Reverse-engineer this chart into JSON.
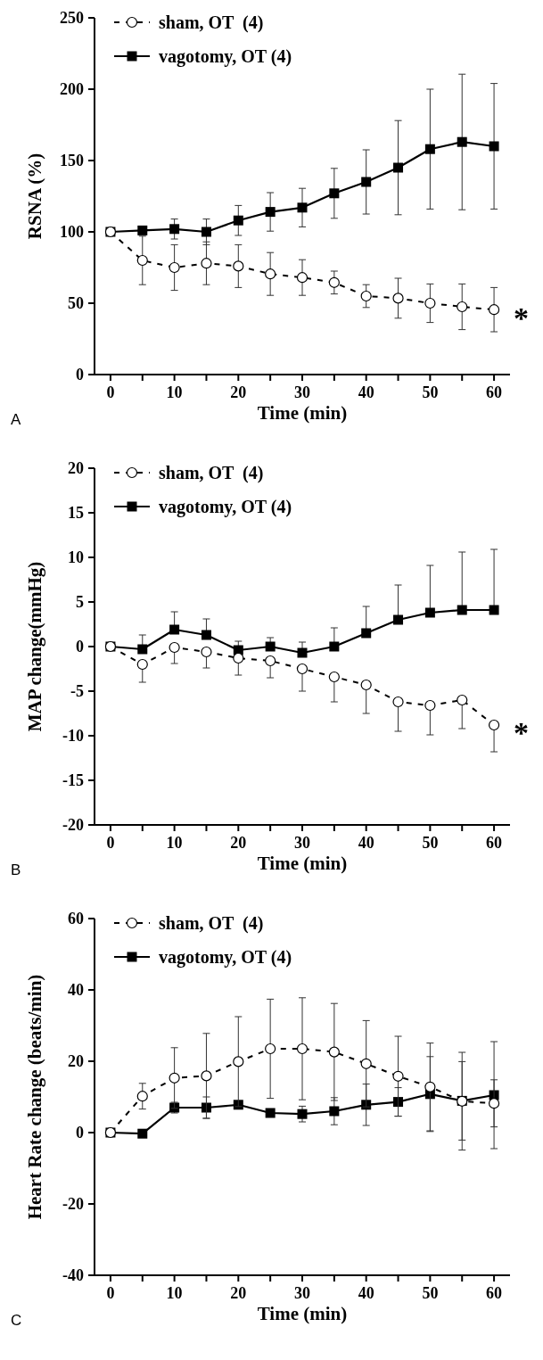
{
  "chart_data": [
    {
      "type": "line",
      "ylabel": "RSNA (%)",
      "xlabel": "Time (min)",
      "x": [
        0,
        5,
        10,
        15,
        20,
        25,
        30,
        35,
        40,
        45,
        50,
        55,
        60
      ],
      "xlim": [
        -2.5,
        62.5
      ],
      "xticks": [
        0,
        {
          "value": 5,
          "label": null
        },
        10,
        {
          "value": 15,
          "label": null
        },
        20,
        {
          "value": 25,
          "label": null
        },
        30,
        {
          "value": 35,
          "label": null
        },
        40,
        {
          "value": 45,
          "label": null
        },
        50,
        {
          "value": 55,
          "label": null
        },
        60
      ],
      "ylim": [
        0,
        250
      ],
      "yticks": [
        0,
        50,
        100,
        150,
        200,
        250
      ],
      "legend": "top left",
      "grid": false,
      "series": [
        {
          "name": "sham, OT  (4)",
          "color": "#000000",
          "marker": "circle",
          "line_style": "dashed",
          "values": [
            100,
            80,
            75,
            78,
            76,
            70.5,
            68,
            64.5,
            55,
            53.5,
            50,
            47.5,
            45.5
          ],
          "errors": [
            null,
            17,
            16,
            15,
            15,
            15,
            12.5,
            8,
            8,
            14,
            13.5,
            16,
            15.5
          ]
        },
        {
          "name": "vagotomy, OT (4)",
          "color": "#000000",
          "marker": "square",
          "line_style": "solid",
          "values": [
            100,
            101,
            102,
            100,
            108,
            114,
            117,
            127,
            135,
            145,
            158,
            163,
            160
          ],
          "errors": [
            null,
            null,
            7,
            9,
            10.5,
            13.5,
            13.5,
            17.5,
            22.5,
            33,
            42,
            47.5,
            44
          ]
        }
      ],
      "annotations": [
        "A",
        {
          "text": "*",
          "x": 60,
          "y": 45.5
        }
      ]
    },
    {
      "type": "line",
      "ylabel": "MAP change(mmHg)",
      "xlabel": "Time (min)",
      "x": [
        0,
        5,
        10,
        15,
        20,
        25,
        30,
        35,
        40,
        45,
        50,
        55,
        60
      ],
      "xlim": [
        -2.5,
        62.5
      ],
      "xticks": [
        0,
        {
          "value": 5,
          "label": null
        },
        10,
        {
          "value": 15,
          "label": null
        },
        20,
        {
          "value": 25,
          "label": null
        },
        30,
        {
          "value": 35,
          "label": null
        },
        40,
        {
          "value": 45,
          "label": null
        },
        50,
        {
          "value": 55,
          "label": null
        },
        60
      ],
      "ylim": [
        -20,
        20
      ],
      "yticks": [
        -20,
        -15,
        -10,
        -5,
        0,
        5,
        10,
        15,
        20
      ],
      "legend": "top left",
      "grid": false,
      "series": [
        {
          "name": "sham, OT  (4)",
          "color": "#000000",
          "marker": "circle",
          "line_style": "dashed",
          "values": [
            0,
            -2,
            -0.1,
            -0.6,
            -1.3,
            -1.6,
            -2.5,
            -3.4,
            -4.3,
            -6.2,
            -6.6,
            -6,
            -8.8
          ],
          "errors": [
            null,
            [
              -4,
              -2
            ],
            [
              -1.9,
              -0.1
            ],
            [
              -2.4,
              -0.6
            ],
            [
              -3.2,
              -1.3
            ],
            [
              -3.5,
              -1.6
            ],
            [
              -5,
              -2.5
            ],
            [
              -6.2,
              -3.4
            ],
            [
              -7.5,
              -4.3
            ],
            [
              -9.5,
              -6.2
            ],
            [
              -9.9,
              -6.6
            ],
            [
              -9.2,
              -6
            ],
            [
              -11.8,
              -8.8
            ]
          ]
        },
        {
          "name": "vagotomy, OT (4)",
          "color": "#000000",
          "marker": "square",
          "line_style": "solid",
          "values": [
            0,
            -0.3,
            1.9,
            1.3,
            -0.4,
            0,
            -0.7,
            0,
            1.5,
            3,
            3.8,
            4.1,
            4.1
          ],
          "errors": [
            null,
            [
              -0.3,
              1.3
            ],
            [
              1.9,
              3.9
            ],
            [
              1.3,
              3.1
            ],
            [
              -0.4,
              0.6
            ],
            [
              0,
              1
            ],
            [
              -0.7,
              0.5
            ],
            [
              0,
              2.1
            ],
            [
              1.5,
              4.5
            ],
            [
              3,
              6.9
            ],
            [
              3.8,
              9.1
            ],
            [
              4.1,
              10.6
            ],
            [
              4.1,
              10.9
            ]
          ]
        }
      ],
      "annotations": [
        "B",
        {
          "text": "*",
          "x": 60,
          "y": -8.8
        }
      ]
    },
    {
      "type": "line",
      "ylabel": "Heart Rate change (beats/min)",
      "xlabel": "Time (min)",
      "x": [
        0,
        5,
        10,
        15,
        20,
        25,
        30,
        35,
        40,
        45,
        50,
        55,
        60
      ],
      "xlim": [
        -2.5,
        62.5
      ],
      "xticks": [
        0,
        {
          "value": 5,
          "label": null
        },
        10,
        {
          "value": 15,
          "label": null
        },
        20,
        {
          "value": 25,
          "label": null
        },
        30,
        {
          "value": 35,
          "label": null
        },
        40,
        {
          "value": 45,
          "label": null
        },
        50,
        {
          "value": 55,
          "label": null
        },
        60
      ],
      "ylim": [
        -40,
        60
      ],
      "yticks": [
        -40,
        -20,
        0,
        20,
        40,
        60
      ],
      "legend": "top left",
      "grid": false,
      "series": [
        {
          "name": "sham, OT  (4)",
          "color": "#000000",
          "marker": "circle",
          "line_style": "dashed",
          "values": [
            0,
            10.2,
            15.3,
            15.9,
            19.9,
            23.5,
            23.5,
            22.6,
            19.3,
            15.8,
            12.8,
            8.8,
            8.2
          ],
          "errors": [
            null,
            3.6,
            8.5,
            11.9,
            12.6,
            13.9,
            14.3,
            13.6,
            12.1,
            11.2,
            12.3,
            13.7,
            6.6
          ]
        },
        {
          "name": "vagotomy, OT (4)",
          "color": "#000000",
          "marker": "square",
          "line_style": "solid",
          "values": [
            0,
            -0.3,
            7,
            7,
            7.8,
            5.5,
            5.2,
            6,
            7.8,
            8.6,
            10.8,
            8.9,
            10.5
          ],
          "errors": [
            null,
            null,
            1.5,
            3,
            null,
            null,
            2.2,
            3.8,
            5.8,
            4,
            10.5,
            11,
            15
          ]
        }
      ],
      "annotations": [
        "C"
      ]
    }
  ]
}
